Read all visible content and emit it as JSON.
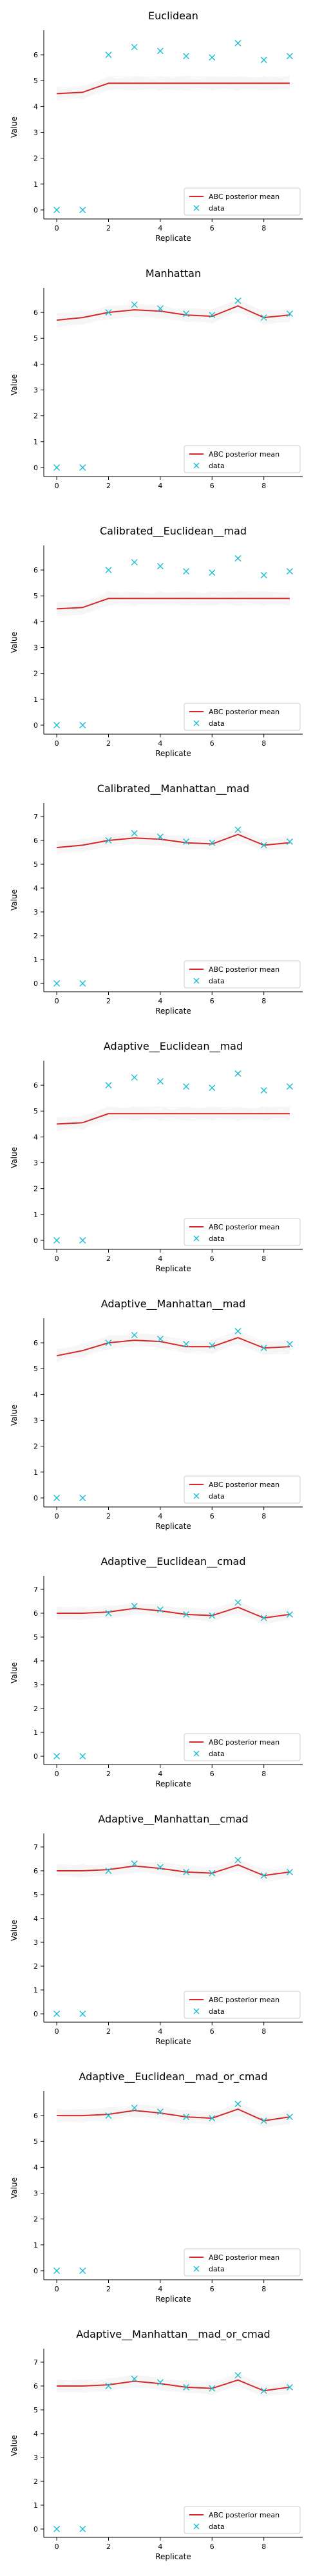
{
  "chart_data": [
    {
      "type": "line",
      "title": "Euclidean",
      "xlabel": "Replicate",
      "ylabel": "Value",
      "xlim": [
        -0.5,
        9.5
      ],
      "ylim": [
        -0.35,
        6.75
      ],
      "xticks": [
        0,
        2,
        4,
        6,
        8
      ],
      "yticks": [
        0,
        1,
        2,
        3,
        4,
        5,
        6
      ],
      "x": [
        0,
        1,
        2,
        3,
        4,
        5,
        6,
        7,
        8,
        9
      ],
      "series": [
        {
          "name": "ABC posterior mean",
          "values": [
            4.5,
            4.55,
            4.9,
            4.9,
            4.9,
            4.9,
            4.9,
            4.9,
            4.9,
            4.9
          ]
        },
        {
          "name": "data",
          "values": [
            0.0,
            0.0,
            6.0,
            6.3,
            6.15,
            5.95,
            5.9,
            6.45,
            5.8,
            5.95
          ]
        }
      ],
      "legend": "lower-right",
      "grid": false
    },
    {
      "type": "line",
      "title": "Manhattan",
      "xlabel": "",
      "ylabel": "Value",
      "xlim": [
        -0.5,
        9.5
      ],
      "ylim": [
        -0.35,
        6.75
      ],
      "xticks": [
        0,
        2,
        4,
        6,
        8
      ],
      "yticks": [
        0,
        1,
        2,
        3,
        4,
        5,
        6
      ],
      "x": [
        0,
        1,
        2,
        3,
        4,
        5,
        6,
        7,
        8,
        9
      ],
      "series": [
        {
          "name": "ABC posterior mean",
          "values": [
            5.7,
            5.8,
            6.0,
            6.1,
            6.05,
            5.9,
            5.85,
            6.25,
            5.8,
            5.9
          ]
        },
        {
          "name": "data",
          "values": [
            0.0,
            0.0,
            6.0,
            6.3,
            6.15,
            5.95,
            5.9,
            6.45,
            5.8,
            5.95
          ]
        }
      ],
      "legend": "lower-right",
      "grid": false
    },
    {
      "type": "line",
      "title": "Calibrated__Euclidean__mad",
      "xlabel": "Replicate",
      "ylabel": "Value",
      "xlim": [
        -0.5,
        9.5
      ],
      "ylim": [
        -0.35,
        6.75
      ],
      "xticks": [
        0,
        2,
        4,
        6,
        8
      ],
      "yticks": [
        0,
        1,
        2,
        3,
        4,
        5,
        6
      ],
      "x": [
        0,
        1,
        2,
        3,
        4,
        5,
        6,
        7,
        8,
        9
      ],
      "series": [
        {
          "name": "ABC posterior mean",
          "values": [
            4.5,
            4.55,
            4.9,
            4.9,
            4.9,
            4.9,
            4.9,
            4.9,
            4.9,
            4.9
          ]
        },
        {
          "name": "data",
          "values": [
            0.0,
            0.0,
            6.0,
            6.3,
            6.15,
            5.95,
            5.9,
            6.45,
            5.8,
            5.95
          ]
        }
      ],
      "legend": "lower-right",
      "grid": false
    },
    {
      "type": "line",
      "title": "Calibrated__Manhattan__mad",
      "xlabel": "Replicate",
      "ylabel": "Value",
      "xlim": [
        -0.5,
        9.5
      ],
      "ylim": [
        -0.35,
        7.35
      ],
      "xticks": [
        0,
        2,
        4,
        6,
        8
      ],
      "yticks": [
        0,
        1,
        2,
        3,
        4,
        5,
        6,
        7
      ],
      "x": [
        0,
        1,
        2,
        3,
        4,
        5,
        6,
        7,
        8,
        9
      ],
      "series": [
        {
          "name": "ABC posterior mean",
          "values": [
            5.7,
            5.8,
            6.0,
            6.1,
            6.05,
            5.9,
            5.85,
            6.25,
            5.8,
            5.9
          ]
        },
        {
          "name": "data",
          "values": [
            0.0,
            0.0,
            6.0,
            6.3,
            6.15,
            5.95,
            5.9,
            6.45,
            5.8,
            5.95
          ]
        }
      ],
      "legend": "lower-right",
      "grid": false
    },
    {
      "type": "line",
      "title": "Adaptive__Euclidean__mad",
      "xlabel": "Replicate",
      "ylabel": "Value",
      "xlim": [
        -0.5,
        9.5
      ],
      "ylim": [
        -0.35,
        6.75
      ],
      "xticks": [
        0,
        2,
        4,
        6,
        8
      ],
      "yticks": [
        0,
        1,
        2,
        3,
        4,
        5,
        6
      ],
      "x": [
        0,
        1,
        2,
        3,
        4,
        5,
        6,
        7,
        8,
        9
      ],
      "series": [
        {
          "name": "ABC posterior mean",
          "values": [
            4.5,
            4.55,
            4.9,
            4.9,
            4.9,
            4.9,
            4.9,
            4.9,
            4.9,
            4.9
          ]
        },
        {
          "name": "data",
          "values": [
            0.0,
            0.0,
            6.0,
            6.3,
            6.15,
            5.95,
            5.9,
            6.45,
            5.8,
            5.95
          ]
        }
      ],
      "legend": "lower-right",
      "grid": false
    },
    {
      "type": "line",
      "title": "Adaptive__Manhattan__mad",
      "xlabel": "Replicate",
      "ylabel": "Value",
      "xlim": [
        -0.5,
        9.5
      ],
      "ylim": [
        -0.35,
        6.75
      ],
      "xticks": [
        0,
        2,
        4,
        6,
        8
      ],
      "yticks": [
        0,
        1,
        2,
        3,
        4,
        5,
        6
      ],
      "x": [
        0,
        1,
        2,
        3,
        4,
        5,
        6,
        7,
        8,
        9
      ],
      "series": [
        {
          "name": "ABC posterior mean",
          "values": [
            5.5,
            5.7,
            6.0,
            6.1,
            6.05,
            5.85,
            5.85,
            6.2,
            5.8,
            5.85
          ]
        },
        {
          "name": "data",
          "values": [
            0.0,
            0.0,
            6.0,
            6.3,
            6.15,
            5.95,
            5.9,
            6.45,
            5.8,
            5.95
          ]
        }
      ],
      "legend": "lower-right",
      "grid": false
    },
    {
      "type": "line",
      "title": "Adaptive__Euclidean__cmad",
      "xlabel": "Replicate",
      "ylabel": "Value",
      "xlim": [
        -0.5,
        9.5
      ],
      "ylim": [
        -0.35,
        7.35
      ],
      "xticks": [
        0,
        2,
        4,
        6,
        8
      ],
      "yticks": [
        0,
        1,
        2,
        3,
        4,
        5,
        6,
        7
      ],
      "x": [
        0,
        1,
        2,
        3,
        4,
        5,
        6,
        7,
        8,
        9
      ],
      "series": [
        {
          "name": "ABC posterior mean",
          "values": [
            6.0,
            6.0,
            6.05,
            6.2,
            6.1,
            5.95,
            5.9,
            6.25,
            5.8,
            5.95
          ]
        },
        {
          "name": "data",
          "values": [
            0.0,
            0.0,
            6.0,
            6.3,
            6.15,
            5.95,
            5.9,
            6.45,
            5.8,
            5.95
          ]
        }
      ],
      "legend": "lower-right",
      "grid": false
    },
    {
      "type": "line",
      "title": "Adaptive__Manhattan__cmad",
      "xlabel": "Replicate",
      "ylabel": "Value",
      "xlim": [
        -0.5,
        9.5
      ],
      "ylim": [
        -0.35,
        7.35
      ],
      "xticks": [
        0,
        2,
        4,
        6,
        8
      ],
      "yticks": [
        0,
        1,
        2,
        3,
        4,
        5,
        6,
        7
      ],
      "x": [
        0,
        1,
        2,
        3,
        4,
        5,
        6,
        7,
        8,
        9
      ],
      "series": [
        {
          "name": "ABC posterior mean",
          "values": [
            6.0,
            6.0,
            6.05,
            6.2,
            6.1,
            5.95,
            5.9,
            6.25,
            5.8,
            5.95
          ]
        },
        {
          "name": "data",
          "values": [
            0.0,
            0.0,
            6.0,
            6.3,
            6.15,
            5.95,
            5.9,
            6.45,
            5.8,
            5.95
          ]
        }
      ],
      "legend": "lower-right",
      "grid": false
    },
    {
      "type": "line",
      "title": "Adaptive__Euclidean__mad_or_cmad",
      "xlabel": "Replicate",
      "ylabel": "Value",
      "xlim": [
        -0.5,
        9.5
      ],
      "ylim": [
        -0.35,
        6.75
      ],
      "xticks": [
        0,
        2,
        4,
        6,
        8
      ],
      "yticks": [
        0,
        1,
        2,
        3,
        4,
        5,
        6
      ],
      "x": [
        0,
        1,
        2,
        3,
        4,
        5,
        6,
        7,
        8,
        9
      ],
      "series": [
        {
          "name": "ABC posterior mean",
          "values": [
            6.0,
            6.0,
            6.05,
            6.2,
            6.1,
            5.95,
            5.9,
            6.25,
            5.8,
            5.95
          ]
        },
        {
          "name": "data",
          "values": [
            0.0,
            0.0,
            6.0,
            6.3,
            6.15,
            5.95,
            5.9,
            6.45,
            5.8,
            5.95
          ]
        }
      ],
      "legend": "lower-right",
      "grid": false
    },
    {
      "type": "line",
      "title": "Adaptive__Manhattan__mad_or_cmad",
      "xlabel": "Replicate",
      "ylabel": "Value",
      "xlim": [
        -0.5,
        9.5
      ],
      "ylim": [
        -0.35,
        7.35
      ],
      "xticks": [
        0,
        2,
        4,
        6,
        8
      ],
      "yticks": [
        0,
        1,
        2,
        3,
        4,
        5,
        6,
        7
      ],
      "x": [
        0,
        1,
        2,
        3,
        4,
        5,
        6,
        7,
        8,
        9
      ],
      "series": [
        {
          "name": "ABC posterior mean",
          "values": [
            6.0,
            6.0,
            6.05,
            6.2,
            6.1,
            5.95,
            5.9,
            6.25,
            5.8,
            5.95
          ]
        },
        {
          "name": "data",
          "values": [
            0.0,
            0.0,
            6.0,
            6.3,
            6.15,
            5.95,
            5.9,
            6.45,
            5.8,
            5.95
          ]
        }
      ],
      "legend": "lower-right",
      "grid": false
    }
  ],
  "colors": {
    "posterior_mean": "#d62728",
    "data_marker": "#17becf",
    "posterior_samples": "#808080",
    "axis": "#000000",
    "text": "#000000",
    "legend_border": "#cccccc"
  }
}
